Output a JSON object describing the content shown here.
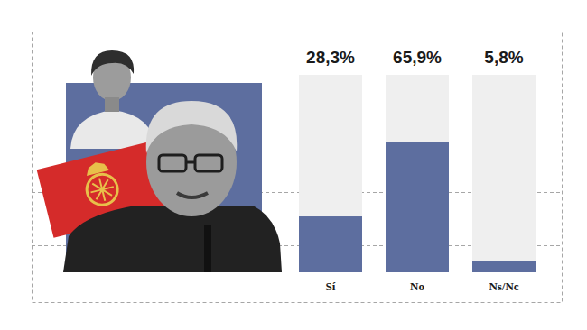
{
  "chart_data": {
    "type": "bar",
    "categories": [
      "Sí",
      "No",
      "Ns/Nc"
    ],
    "values": [
      28.3,
      65.9,
      5.8
    ],
    "value_labels": [
      "28,3%",
      "65,9%",
      "5,8%"
    ],
    "color": "#5d6e9f",
    "ylim": [
      0,
      100
    ],
    "data_labels": true,
    "tick_labels": "x"
  }
}
